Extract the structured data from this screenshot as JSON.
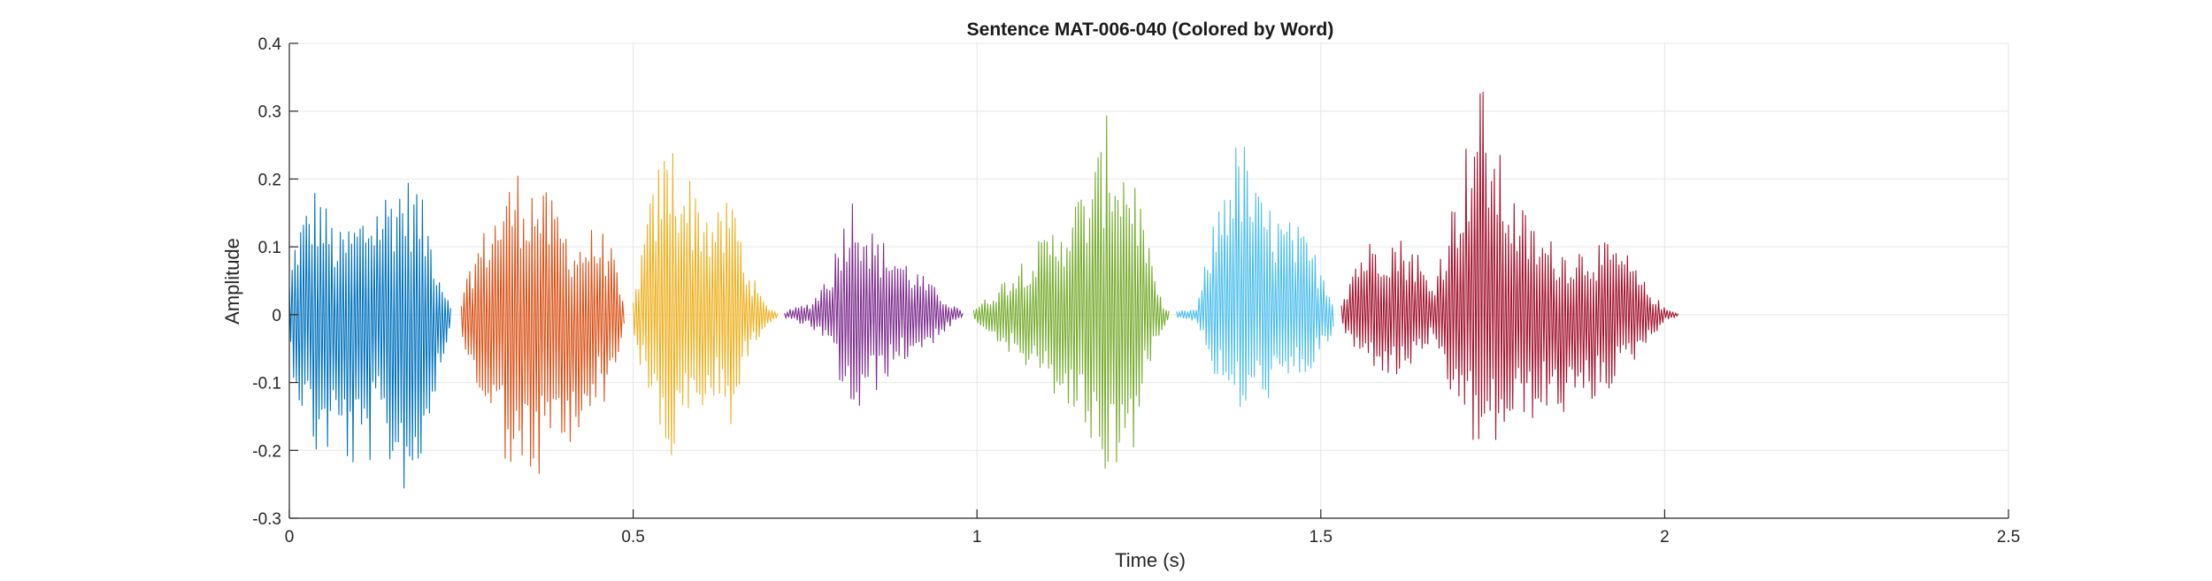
{
  "chart_data": {
    "type": "line",
    "title": "Sentence MAT-006-040 (Colored by Word)",
    "xlabel": "Time (s)",
    "ylabel": "Amplitude",
    "xlim": [
      0,
      2.5
    ],
    "ylim": [
      -0.3,
      0.4
    ],
    "x_ticks": [
      0,
      0.5,
      1,
      1.5,
      2,
      2.5
    ],
    "x_tick_labels": [
      "0",
      "0.5",
      "1",
      "1.5",
      "2",
      "2.5"
    ],
    "y_ticks": [
      -0.3,
      -0.2,
      -0.1,
      0,
      0.1,
      0.2,
      0.3,
      0.4
    ],
    "y_tick_labels": [
      "-0.3",
      "-0.2",
      "-0.1",
      "0",
      "0.1",
      "0.2",
      "0.3",
      "0.4"
    ],
    "grid": true,
    "series": [
      {
        "color": "#0072BD",
        "start": 0.0,
        "end": 0.235,
        "peak_max": 0.215,
        "peak_min": -0.275,
        "envelope": [
          [
            0.0,
            0.05,
            -0.05
          ],
          [
            0.01,
            0.13,
            -0.12
          ],
          [
            0.04,
            0.2,
            -0.22
          ],
          [
            0.07,
            0.12,
            -0.2
          ],
          [
            0.1,
            0.15,
            -0.25
          ],
          [
            0.13,
            0.18,
            -0.2
          ],
          [
            0.16,
            0.21,
            -0.26
          ],
          [
            0.185,
            0.2,
            -0.27
          ],
          [
            0.205,
            0.13,
            -0.15
          ],
          [
            0.22,
            0.06,
            -0.08
          ],
          [
            0.235,
            0.02,
            -0.02
          ]
        ]
      },
      {
        "color": "#D95319",
        "start": 0.25,
        "end": 0.487,
        "peak_max": 0.225,
        "peak_min": -0.28,
        "envelope": [
          [
            0.25,
            0.02,
            -0.03
          ],
          [
            0.27,
            0.1,
            -0.12
          ],
          [
            0.3,
            0.16,
            -0.17
          ],
          [
            0.33,
            0.22,
            -0.27
          ],
          [
            0.36,
            0.2,
            -0.25
          ],
          [
            0.39,
            0.16,
            -0.2
          ],
          [
            0.415,
            0.11,
            -0.22
          ],
          [
            0.44,
            0.13,
            -0.13
          ],
          [
            0.465,
            0.12,
            -0.13
          ],
          [
            0.487,
            0.01,
            -0.02
          ]
        ]
      },
      {
        "color": "#EDB120",
        "start": 0.5,
        "end": 0.71,
        "peak_max": 0.27,
        "peak_min": -0.23,
        "envelope": [
          [
            0.5,
            0.02,
            -0.03
          ],
          [
            0.515,
            0.12,
            -0.1
          ],
          [
            0.535,
            0.22,
            -0.17
          ],
          [
            0.555,
            0.27,
            -0.23
          ],
          [
            0.575,
            0.22,
            -0.18
          ],
          [
            0.6,
            0.18,
            -0.15
          ],
          [
            0.625,
            0.15,
            -0.13
          ],
          [
            0.645,
            0.19,
            -0.17
          ],
          [
            0.665,
            0.08,
            -0.07
          ],
          [
            0.69,
            0.02,
            -0.02
          ],
          [
            0.71,
            0.003,
            -0.003
          ]
        ]
      },
      {
        "color": "#7E2F8E",
        "start": 0.72,
        "end": 0.98,
        "peak_max": 0.19,
        "peak_min": -0.16,
        "envelope": [
          [
            0.72,
            0.005,
            -0.005
          ],
          [
            0.76,
            0.02,
            -0.02
          ],
          [
            0.79,
            0.08,
            -0.06
          ],
          [
            0.81,
            0.17,
            -0.14
          ],
          [
            0.825,
            0.19,
            -0.16
          ],
          [
            0.85,
            0.12,
            -0.12
          ],
          [
            0.88,
            0.1,
            -0.08
          ],
          [
            0.91,
            0.07,
            -0.06
          ],
          [
            0.94,
            0.04,
            -0.04
          ],
          [
            0.96,
            0.02,
            -0.02
          ],
          [
            0.98,
            0.003,
            -0.003
          ]
        ]
      },
      {
        "color": "#77AC30",
        "start": 0.995,
        "end": 1.28,
        "peak_max": 0.3,
        "peak_min": -0.25,
        "envelope": [
          [
            0.995,
            0.01,
            -0.01
          ],
          [
            1.02,
            0.03,
            -0.03
          ],
          [
            1.06,
            0.08,
            -0.07
          ],
          [
            1.1,
            0.12,
            -0.11
          ],
          [
            1.14,
            0.17,
            -0.15
          ],
          [
            1.17,
            0.22,
            -0.2
          ],
          [
            1.19,
            0.3,
            -0.25
          ],
          [
            1.21,
            0.25,
            -0.22
          ],
          [
            1.23,
            0.22,
            -0.2
          ],
          [
            1.25,
            0.1,
            -0.08
          ],
          [
            1.265,
            0.03,
            -0.03
          ],
          [
            1.28,
            0.005,
            -0.005
          ]
        ]
      },
      {
        "color": "#4DBEEE",
        "start": 1.29,
        "end": 1.52,
        "peak_max": 0.27,
        "peak_min": -0.15,
        "envelope": [
          [
            1.29,
            0.005,
            -0.005
          ],
          [
            1.32,
            0.01,
            -0.01
          ],
          [
            1.34,
            0.12,
            -0.08
          ],
          [
            1.365,
            0.24,
            -0.13
          ],
          [
            1.385,
            0.27,
            -0.15
          ],
          [
            1.41,
            0.18,
            -0.13
          ],
          [
            1.44,
            0.15,
            -0.12
          ],
          [
            1.47,
            0.13,
            -0.1
          ],
          [
            1.5,
            0.08,
            -0.07
          ],
          [
            1.52,
            0.02,
            -0.02
          ]
        ]
      },
      {
        "color": "#A2142F",
        "start": 1.53,
        "end": 2.02,
        "peak_max": 0.365,
        "peak_min": -0.23,
        "envelope": [
          [
            1.53,
            0.02,
            -0.02
          ],
          [
            1.55,
            0.09,
            -0.06
          ],
          [
            1.58,
            0.12,
            -0.08
          ],
          [
            1.61,
            0.12,
            -0.1
          ],
          [
            1.64,
            0.1,
            -0.07
          ],
          [
            1.66,
            0.04,
            -0.04
          ],
          [
            1.68,
            0.12,
            -0.12
          ],
          [
            1.71,
            0.25,
            -0.15
          ],
          [
            1.73,
            0.365,
            -0.23
          ],
          [
            1.75,
            0.27,
            -0.2
          ],
          [
            1.78,
            0.18,
            -0.17
          ],
          [
            1.82,
            0.12,
            -0.15
          ],
          [
            1.86,
            0.1,
            -0.15
          ],
          [
            1.9,
            0.11,
            -0.13
          ],
          [
            1.94,
            0.1,
            -0.09
          ],
          [
            1.97,
            0.05,
            -0.05
          ],
          [
            2.0,
            0.01,
            -0.01
          ],
          [
            2.02,
            0.003,
            -0.003
          ]
        ]
      }
    ]
  }
}
